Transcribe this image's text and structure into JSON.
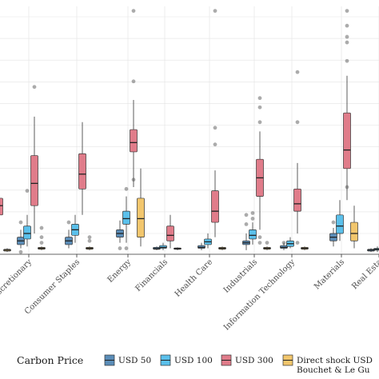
{
  "chart_data": {
    "type": "box",
    "categories": [
      "Consumer Discretionary",
      "Consumer Staples",
      "Energy",
      "Financials",
      "Health Care",
      "Industrials",
      "Information Technology",
      "Materials",
      "Real Estate"
    ],
    "tick_labels": [
      "r Discretionary",
      "Consumer Staples",
      "Energy",
      "Financials",
      "Health Care",
      "Industrials",
      "Information Technology",
      "Materials",
      "Real Esta"
    ],
    "grid": true,
    "legend": {
      "title": "Carbon Price",
      "placement": "bottom",
      "entries": [
        {
          "label": "USD 50",
          "color": "#5b8db8"
        },
        {
          "label": "USD 100",
          "color": "#5bc0eb"
        },
        {
          "label": "USD 300",
          "color": "#e07c8a"
        },
        {
          "label": "Direct shock USD",
          "label_line2": "Bouchet & Le Gu",
          "color": "#f2c66d"
        }
      ]
    },
    "series": [
      {
        "name": "USD 50",
        "color": "#5b8db8",
        "boxes": [
          {
            "category": "Consumer Discretionary",
            "whislo": -0.08,
            "q1": -0.06,
            "med": -0.04,
            "q3": -0.02,
            "whishi": 0.02,
            "fliers": [
              0.06,
              -0.1
            ]
          },
          {
            "category": "Consumer Staples",
            "whislo": -0.08,
            "q1": -0.06,
            "med": -0.04,
            "q3": -0.02,
            "whishi": 0.02,
            "fliers": [
              0.06
            ]
          },
          {
            "category": "Energy",
            "whislo": -0.05,
            "q1": -0.02,
            "med": 0.0,
            "q3": 0.02,
            "whishi": 0.07,
            "fliers": [
              -0.08
            ]
          },
          {
            "category": "Financials",
            "whislo": -0.09,
            "q1": -0.085,
            "med": -0.082,
            "q3": -0.075,
            "whishi": -0.07,
            "fliers": []
          },
          {
            "category": "Health Care",
            "whislo": -0.09,
            "q1": -0.08,
            "med": -0.075,
            "q3": -0.065,
            "whishi": -0.05,
            "fliers": []
          },
          {
            "category": "Industrials",
            "whislo": -0.09,
            "q1": -0.06,
            "med": -0.05,
            "q3": -0.04,
            "whishi": 0.0,
            "fliers": [
              0.05,
              0.1
            ]
          },
          {
            "category": "Information Technology",
            "whislo": -0.09,
            "q1": -0.08,
            "med": -0.075,
            "q3": -0.065,
            "whishi": -0.05,
            "fliers": [
              -0.05
            ]
          },
          {
            "category": "Materials",
            "whislo": -0.07,
            "q1": -0.04,
            "med": -0.02,
            "q3": 0.0,
            "whishi": 0.03,
            "fliers": [
              0.06
            ]
          },
          {
            "category": "Real Estate",
            "whislo": -0.1,
            "q1": -0.095,
            "med": -0.09,
            "q3": -0.085,
            "whishi": -0.08,
            "fliers": []
          }
        ]
      },
      {
        "name": "USD 100",
        "color": "#5bc0eb",
        "boxes": [
          {
            "category": "Consumer Discretionary",
            "whislo": -0.07,
            "q1": -0.03,
            "med": 0.0,
            "q3": 0.04,
            "whishi": 0.1,
            "fliers": [
              0.23
            ]
          },
          {
            "category": "Consumer Staples",
            "whislo": -0.05,
            "q1": -0.01,
            "med": 0.02,
            "q3": 0.05,
            "whishi": 0.1,
            "fliers": []
          },
          {
            "category": "Energy",
            "whislo": -0.05,
            "q1": 0.05,
            "med": 0.08,
            "q3": 0.12,
            "whishi": 0.2,
            "fliers": [
              0.24,
              -0.08
            ]
          },
          {
            "category": "Financials",
            "whislo": -0.09,
            "q1": -0.08,
            "med": -0.075,
            "q3": -0.065,
            "whishi": -0.05,
            "fliers": []
          },
          {
            "category": "Health Care",
            "whislo": -0.08,
            "q1": -0.06,
            "med": -0.045,
            "q3": -0.03,
            "whishi": 0.0,
            "fliers": []
          },
          {
            "category": "Industrials",
            "whislo": -0.06,
            "q1": -0.03,
            "med": -0.01,
            "q3": 0.02,
            "whishi": 0.06,
            "fliers": [
              0.08,
              0.11
            ]
          },
          {
            "category": "Information Technology",
            "whislo": -0.08,
            "q1": -0.07,
            "med": -0.055,
            "q3": -0.04,
            "whishi": -0.02,
            "fliers": []
          },
          {
            "category": "Materials",
            "whislo": -0.04,
            "q1": 0.0,
            "med": 0.04,
            "q3": 0.1,
            "whishi": 0.18,
            "fliers": []
          },
          {
            "category": "Real Estate",
            "whislo": -0.1,
            "q1": -0.09,
            "med": -0.085,
            "q3": -0.08,
            "whishi": -0.07,
            "fliers": []
          }
        ]
      },
      {
        "name": "USD 300",
        "color": "#e07c8a",
        "boxes": [
          {
            "category": "Consumer Discretionary",
            "whislo": 0.0,
            "q1": 0.15,
            "med": 0.27,
            "q3": 0.42,
            "whishi": 0.63,
            "fliers": [
              0.79
            ]
          },
          {
            "category": "Consumer Staples",
            "whislo": 0.1,
            "q1": 0.24,
            "med": 0.32,
            "q3": 0.43,
            "whishi": 0.6,
            "fliers": []
          },
          {
            "category": "Energy",
            "whislo": 0.25,
            "q1": 0.44,
            "med": 0.49,
            "q3": 0.56,
            "whishi": 0.72,
            "fliers": [
              0.82,
              1.2,
              0.29
            ]
          },
          {
            "category": "Financials",
            "whislo": -0.08,
            "q1": -0.04,
            "med": -0.01,
            "q3": 0.04,
            "whishi": 0.1,
            "fliers": []
          },
          {
            "category": "Health Care",
            "whislo": -0.02,
            "q1": 0.06,
            "med": 0.12,
            "q3": 0.23,
            "whishi": 0.34,
            "fliers": [
              0.48,
              0.57,
              1.2
            ]
          },
          {
            "category": "Industrials",
            "whislo": 0.02,
            "q1": 0.2,
            "med": 0.3,
            "q3": 0.4,
            "whishi": 0.55,
            "fliers": [
              0.6,
              0.68,
              0.73,
              -0.02,
              -0.05
            ]
          },
          {
            "category": "Information Technology",
            "whislo": 0.0,
            "q1": 0.12,
            "med": 0.16,
            "q3": 0.24,
            "whishi": 0.38,
            "fliers": [
              0.6,
              0.87,
              -0.05
            ]
          },
          {
            "category": "Materials",
            "whislo": 0.18,
            "q1": 0.35,
            "med": 0.45,
            "q3": 0.65,
            "whishi": 0.85,
            "fliers": [
              0.93,
              1.03,
              1.06,
              1.12,
              1.2,
              0.25
            ]
          },
          {
            "category": "Real Estate",
            "whislo": -0.1,
            "q1": -0.095,
            "med": -0.085,
            "q3": -0.075,
            "whishi": -0.06,
            "fliers": []
          }
        ]
      },
      {
        "name": "Direct shock USD",
        "color": "#f2c66d",
        "boxes": [
          {
            "category": "Consumer Discretionary",
            "whislo": -0.09,
            "q1": -0.085,
            "med": -0.08,
            "q3": -0.075,
            "whishi": -0.07,
            "fliers": [
              -0.02,
              -0.05,
              0.03
            ]
          },
          {
            "category": "Consumer Staples",
            "whislo": -0.09,
            "q1": -0.085,
            "med": -0.08,
            "q3": -0.075,
            "whishi": -0.07,
            "fliers": [
              -0.04,
              -0.02
            ]
          },
          {
            "category": "Energy",
            "whislo": -0.07,
            "q1": -0.02,
            "med": 0.08,
            "q3": 0.19,
            "whishi": 0.35,
            "fliers": []
          },
          {
            "category": "Financials",
            "whislo": -0.09,
            "q1": -0.085,
            "med": -0.082,
            "q3": -0.078,
            "whishi": -0.075,
            "fliers": []
          },
          {
            "category": "Health Care",
            "whislo": -0.09,
            "q1": -0.085,
            "med": -0.08,
            "q3": -0.075,
            "whishi": -0.07,
            "fliers": []
          },
          {
            "category": "Industrials",
            "whislo": -0.09,
            "q1": -0.085,
            "med": -0.08,
            "q3": -0.075,
            "whishi": -0.07,
            "fliers": [
              -0.05
            ]
          },
          {
            "category": "Information Technology",
            "whislo": -0.09,
            "q1": -0.085,
            "med": -0.08,
            "q3": -0.075,
            "whishi": -0.07,
            "fliers": []
          },
          {
            "category": "Materials",
            "whislo": -0.08,
            "q1": -0.04,
            "med": 0.0,
            "q3": 0.06,
            "whishi": 0.15,
            "fliers": []
          },
          {
            "category": "Real Estate",
            "whislo": -0.1,
            "q1": -0.095,
            "med": -0.09,
            "q3": -0.085,
            "whishi": -0.08,
            "fliers": []
          }
        ]
      }
    ],
    "partial_left": {
      "fragments": [
        {
          "series": "USD 300",
          "whislo": 0.1,
          "q1": 0.1,
          "med": 0.15,
          "q3": 0.19,
          "whishi": 0.19
        },
        {
          "series": "Direct shock USD",
          "whislo": -0.1,
          "q1": -0.095,
          "med": -0.09,
          "q3": -0.085,
          "whishi": -0.08
        }
      ]
    }
  }
}
